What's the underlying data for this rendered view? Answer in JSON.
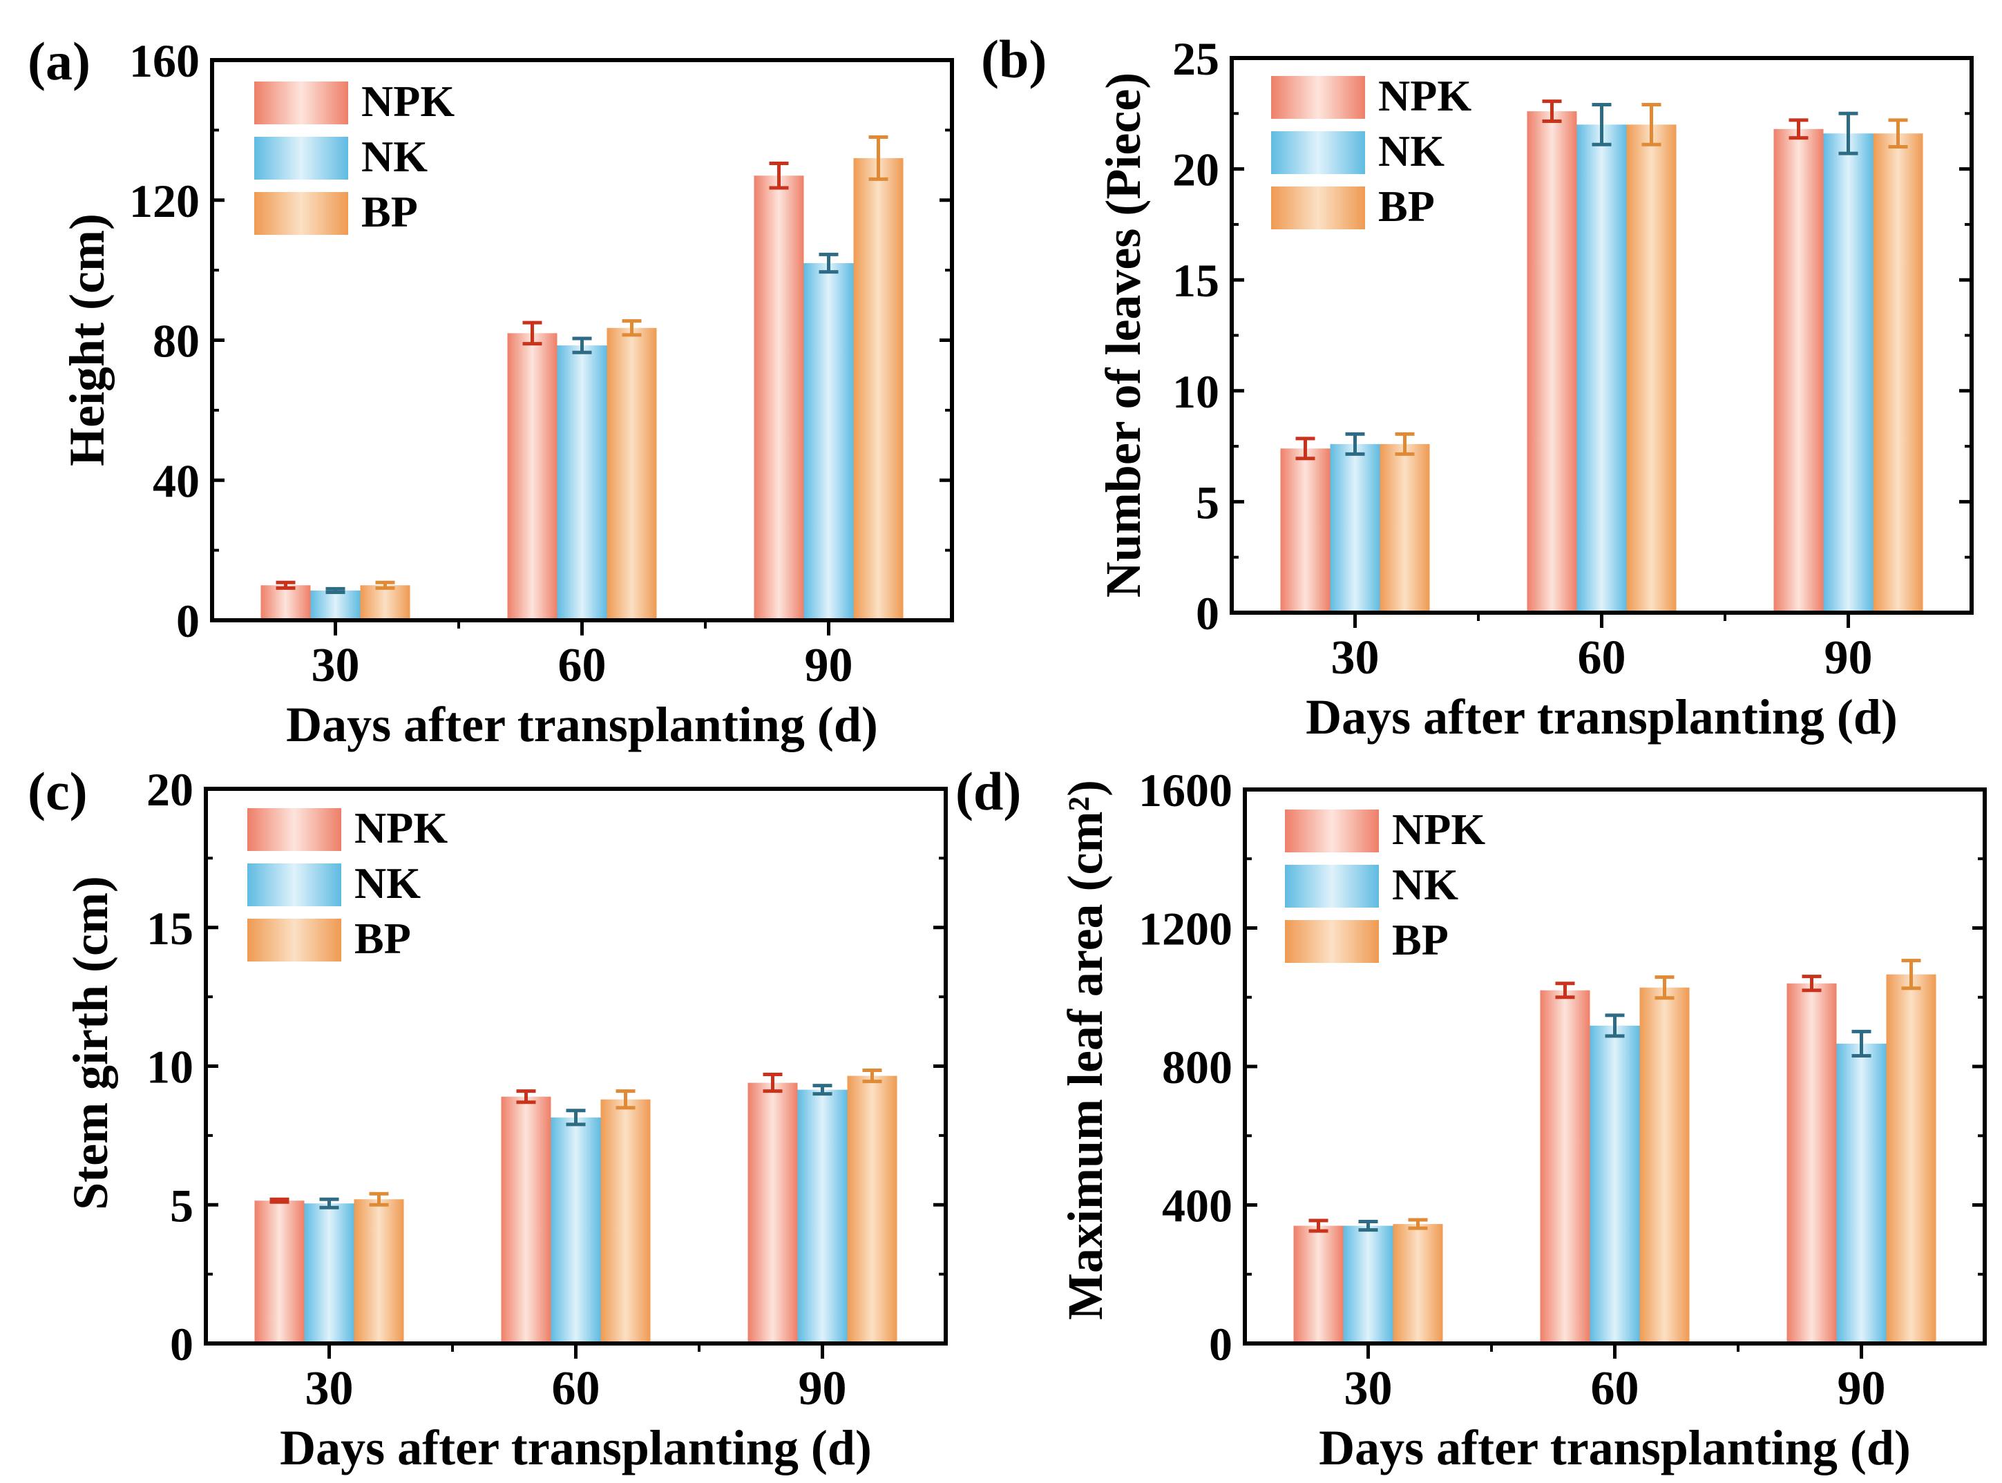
{
  "legend": [
    "NPK",
    "NK",
    "BP"
  ],
  "colors": {
    "NPK": "#f08a73",
    "NK": "#6ec2e4",
    "BP": "#f2a463",
    "NPK_err": "#c9331c",
    "NK_err": "#2e6c85",
    "BP_err": "#e08a35"
  },
  "chart_data": [
    {
      "panel": "(a)",
      "type": "bar",
      "categories": [
        "30",
        "60",
        "90"
      ],
      "xlabel": "Days after transplanting (d)",
      "ylabel": "Height (cm)",
      "ylim": [
        0,
        160
      ],
      "yticks": [
        "0",
        "40",
        "80",
        "120",
        "160"
      ],
      "series": [
        {
          "name": "NPK",
          "values": [
            10,
            82,
            127
          ],
          "errors": [
            0.8,
            3.0,
            3.5
          ]
        },
        {
          "name": "NK",
          "values": [
            8.5,
            78.5,
            102
          ],
          "errors": [
            0.5,
            2.0,
            2.5
          ]
        },
        {
          "name": "BP",
          "values": [
            10,
            83.5,
            132
          ],
          "errors": [
            0.8,
            2.0,
            6.0
          ]
        }
      ]
    },
    {
      "panel": "(b)",
      "type": "bar",
      "categories": [
        "30",
        "60",
        "90"
      ],
      "xlabel": "Days after transplanting (d)",
      "ylabel": "Number of leaves (Piece)",
      "ylim": [
        0,
        25
      ],
      "yticks": [
        "0",
        "5",
        "10",
        "15",
        "20",
        "25"
      ],
      "series": [
        {
          "name": "NPK",
          "values": [
            7.4,
            22.6,
            21.8
          ],
          "errors": [
            0.45,
            0.45,
            0.4
          ]
        },
        {
          "name": "NK",
          "values": [
            7.6,
            22,
            21.6
          ],
          "errors": [
            0.45,
            0.9,
            0.9
          ]
        },
        {
          "name": "BP",
          "values": [
            7.6,
            22,
            21.6
          ],
          "errors": [
            0.45,
            0.9,
            0.6
          ]
        }
      ]
    },
    {
      "panel": "(c)",
      "type": "bar",
      "categories": [
        "30",
        "60",
        "90"
      ],
      "xlabel": "Days after transplanting (d)",
      "ylabel": "Stem girth (cm)",
      "ylim": [
        0,
        20
      ],
      "yticks": [
        "0",
        "5",
        "10",
        "15",
        "20"
      ],
      "series": [
        {
          "name": "NPK",
          "values": [
            5.15,
            8.9,
            9.4
          ],
          "errors": [
            0.05,
            0.2,
            0.3
          ]
        },
        {
          "name": "NK",
          "values": [
            5.05,
            8.15,
            9.15
          ],
          "errors": [
            0.15,
            0.25,
            0.15
          ]
        },
        {
          "name": "BP",
          "values": [
            5.2,
            8.8,
            9.65
          ],
          "errors": [
            0.2,
            0.3,
            0.2
          ]
        }
      ]
    },
    {
      "panel": "(d)",
      "type": "bar",
      "categories": [
        "30",
        "60",
        "90"
      ],
      "xlabel": "Days after transplanting (d)",
      "ylabel": "Maximum leaf area (cm²)",
      "ylim": [
        0,
        1600
      ],
      "yticks": [
        "0",
        "400",
        "800",
        "1200",
        "1600"
      ],
      "series": [
        {
          "name": "NPK",
          "values": [
            340,
            1020,
            1040
          ],
          "errors": [
            15,
            20,
            20
          ]
        },
        {
          "name": "NK",
          "values": [
            340,
            918,
            866
          ],
          "errors": [
            12,
            30,
            35
          ]
        },
        {
          "name": "BP",
          "values": [
            345,
            1028,
            1066
          ],
          "errors": [
            12,
            30,
            40
          ]
        }
      ]
    }
  ]
}
